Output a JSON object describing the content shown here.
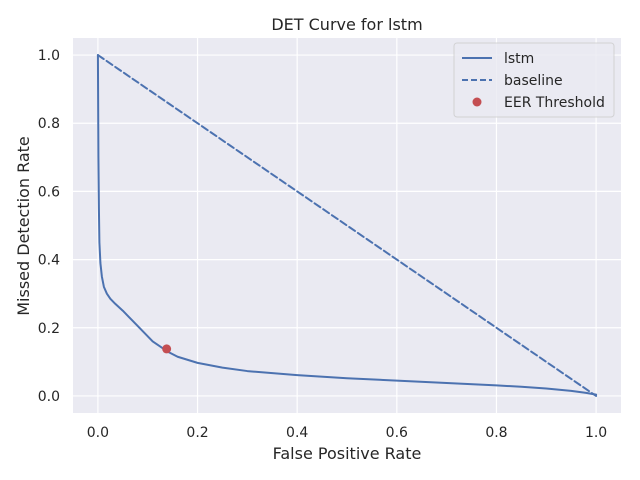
{
  "chart_data": {
    "type": "line",
    "title": "DET Curve for lstm",
    "xlabel": "False Positive Rate",
    "ylabel": "Missed Detection Rate",
    "xlim": [
      -0.05,
      1.05
    ],
    "ylim": [
      -0.05,
      1.05
    ],
    "xticks": [
      0.0,
      0.2,
      0.4,
      0.6,
      0.8,
      1.0
    ],
    "yticks": [
      0.0,
      0.2,
      0.4,
      0.6,
      0.8,
      1.0
    ],
    "xtick_labels": [
      "0.0",
      "0.2",
      "0.4",
      "0.6",
      "0.8",
      "1.0"
    ],
    "ytick_labels": [
      "0.0",
      "0.2",
      "0.4",
      "0.6",
      "0.8",
      "1.0"
    ],
    "grid": true,
    "legend_position": "top-right",
    "series": [
      {
        "name": "lstm",
        "style": "solid",
        "color": "#4c72b0",
        "x": [
          0.0,
          0.0005,
          0.001,
          0.002,
          0.003,
          0.005,
          0.008,
          0.012,
          0.018,
          0.025,
          0.035,
          0.05,
          0.07,
          0.09,
          0.11,
          0.13,
          0.14,
          0.16,
          0.2,
          0.25,
          0.3,
          0.4,
          0.5,
          0.6,
          0.7,
          0.8,
          0.85,
          0.9,
          0.95,
          0.98,
          1.0
        ],
        "y": [
          1.0,
          0.85,
          0.7,
          0.55,
          0.45,
          0.39,
          0.35,
          0.32,
          0.3,
          0.285,
          0.27,
          0.25,
          0.22,
          0.19,
          0.16,
          0.14,
          0.13,
          0.115,
          0.097,
          0.083,
          0.073,
          0.061,
          0.052,
          0.045,
          0.038,
          0.031,
          0.027,
          0.022,
          0.015,
          0.009,
          0.004
        ]
      },
      {
        "name": "baseline",
        "style": "dashed",
        "color": "#4c72b0",
        "x": [
          0.0,
          1.0
        ],
        "y": [
          1.0,
          0.0
        ]
      },
      {
        "name": "EER Threshold",
        "style": "point",
        "color": "#c44e52",
        "x": [
          0.138
        ],
        "y": [
          0.138
        ]
      }
    ]
  }
}
